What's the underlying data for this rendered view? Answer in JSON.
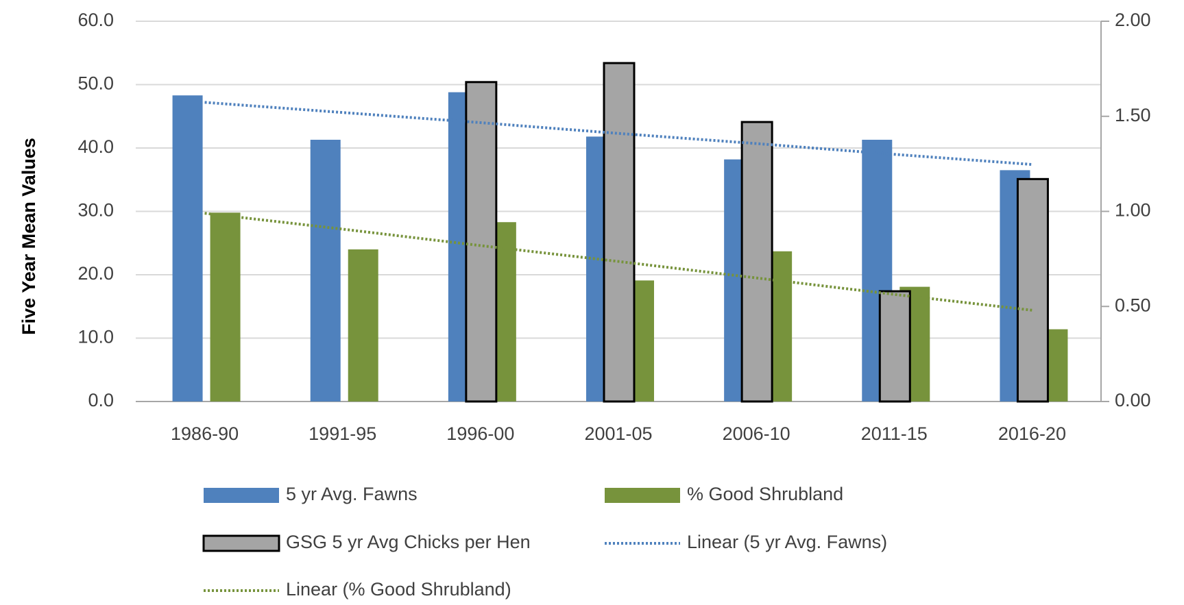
{
  "chart_data": {
    "type": "bar",
    "y_label": "Five Year Mean Values",
    "categories": [
      "1986-90",
      "1991-95",
      "1996-00",
      "2001-05",
      "2006-10",
      "2011-15",
      "2016-20"
    ],
    "series": [
      {
        "name": "5 yr Avg. Fawns",
        "type": "bar",
        "color": "#4f81bd",
        "values": [
          48.3,
          41.3,
          48.8,
          41.8,
          38.2,
          41.3,
          36.5
        ]
      },
      {
        "name": "% Good Shrubland",
        "type": "bar",
        "color": "#77933c",
        "values": [
          29.8,
          24.0,
          28.3,
          19.1,
          23.7,
          18.1,
          11.4
        ]
      },
      {
        "name": "GSG 5 yr Avg Chicks per Hen",
        "type": "bar",
        "axis": "y2",
        "color": "#a5a5a5",
        "edgecolor": "#000000",
        "values": [
          null,
          null,
          1.68,
          1.78,
          1.47,
          0.58,
          1.17
        ]
      },
      {
        "name": "Linear (5 yr Avg. Fawns)",
        "type": "line",
        "linestyle": "dotted",
        "color": "#4f81bd",
        "values": [
          47.2,
          45.6,
          44.0,
          42.3,
          40.7,
          39.0,
          37.4
        ]
      },
      {
        "name": "Linear (% Good Shrubland)",
        "type": "line",
        "linestyle": "dotted",
        "color": "#77933c",
        "values": [
          29.7,
          27.2,
          24.6,
          22.1,
          19.5,
          16.9,
          14.4
        ]
      }
    ],
    "ylim": [
      0,
      60
    ],
    "yticks": [
      {
        "value": 0,
        "label": "0.0"
      },
      {
        "value": 10,
        "label": "10.0"
      },
      {
        "value": 20,
        "label": "20.0"
      },
      {
        "value": 30,
        "label": "30.0"
      },
      {
        "value": 40,
        "label": "40.0"
      },
      {
        "value": 50,
        "label": "50.0"
      },
      {
        "value": 60,
        "label": "60.0"
      }
    ],
    "y2lim": [
      0,
      2
    ],
    "y2ticks": [
      {
        "value": 0,
        "label": "0.00"
      },
      {
        "value": 0.5,
        "label": "0.50"
      },
      {
        "value": 1,
        "label": "1.00"
      },
      {
        "value": 1.5,
        "label": "1.50"
      },
      {
        "value": 2,
        "label": "2.00"
      }
    ],
    "grid": true,
    "legend": "bottom"
  }
}
